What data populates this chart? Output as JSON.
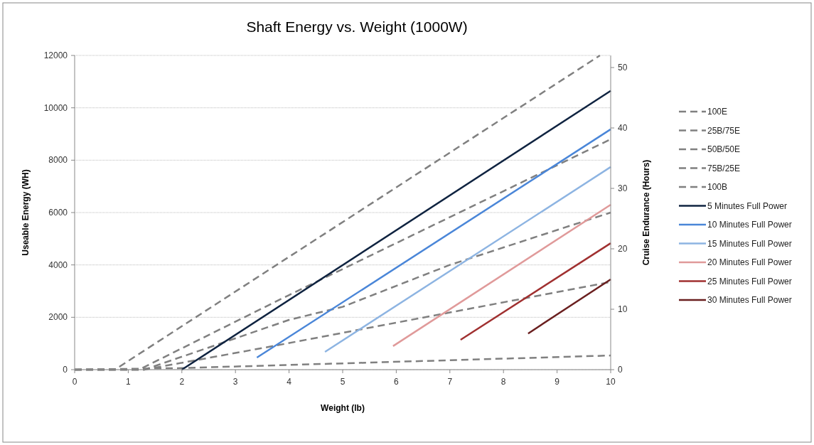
{
  "chart_data": {
    "type": "line",
    "title": "Shaft Energy vs. Weight (1000W)",
    "xlabel": "Weight (lb)",
    "ylabel": "Useable Energy (WH)",
    "y2label": "Cruise Endurance (Hours)",
    "xlim": [
      0,
      10
    ],
    "xticks": [
      0,
      1,
      2,
      3,
      4,
      5,
      6,
      7,
      8,
      9,
      10
    ],
    "ylim": [
      0,
      12000
    ],
    "yticks": [
      0,
      2000,
      4000,
      6000,
      8000,
      10000,
      12000
    ],
    "y2lim": [
      0,
      52
    ],
    "y2ticks": [
      0,
      10,
      20,
      30,
      40,
      50
    ],
    "grid": "y",
    "legend": "right",
    "marker": "none",
    "series": [
      {
        "name": "100E",
        "color": "#808080",
        "line_style": "dashed",
        "x": [
          0,
          0.75,
          9.8
        ],
        "values": [
          0,
          0,
          12000
        ]
      },
      {
        "name": "25B/75E",
        "color": "#808080",
        "line_style": "dashed",
        "x": [
          0,
          1.2,
          4,
          10
        ],
        "values": [
          0,
          0,
          2850,
          8800
        ]
      },
      {
        "name": "50B/50E",
        "color": "#808080",
        "line_style": "dashed",
        "x": [
          0,
          1.3,
          4,
          5,
          7,
          10
        ],
        "values": [
          0,
          0,
          1900,
          2400,
          4000,
          6000
        ]
      },
      {
        "name": "75B/25E",
        "color": "#808080",
        "line_style": "dashed",
        "x": [
          0,
          1.3,
          3.7,
          10
        ],
        "values": [
          0,
          0,
          900,
          3350
        ]
      },
      {
        "name": "100B",
        "color": "#808080",
        "line_style": "dashed",
        "x": [
          0,
          2,
          10
        ],
        "values": [
          0,
          60,
          540
        ]
      },
      {
        "name": "5 Minutes Full Power",
        "color": "#0f2340",
        "line_style": "solid",
        "x": [
          2,
          10
        ],
        "values": [
          0,
          10650
        ]
      },
      {
        "name": "10 Minutes Full Power",
        "color": "#4a86d8",
        "line_style": "solid",
        "x": [
          3.4,
          10
        ],
        "values": [
          460,
          9180
        ]
      },
      {
        "name": "15 Minutes Full Power",
        "color": "#8db4e2",
        "line_style": "solid",
        "x": [
          4.67,
          10
        ],
        "values": [
          680,
          7740
        ]
      },
      {
        "name": "20 Minutes Full Power",
        "color": "#e09a9a",
        "line_style": "solid",
        "x": [
          5.94,
          10
        ],
        "values": [
          900,
          6300
        ]
      },
      {
        "name": "25 Minutes Full Power",
        "color": "#a03030",
        "line_style": "solid",
        "x": [
          7.2,
          10
        ],
        "values": [
          1140,
          4830
        ]
      },
      {
        "name": "30 Minutes Full Power",
        "color": "#6a1f1f",
        "line_style": "solid",
        "x": [
          8.46,
          10
        ],
        "values": [
          1380,
          3450
        ]
      }
    ]
  }
}
